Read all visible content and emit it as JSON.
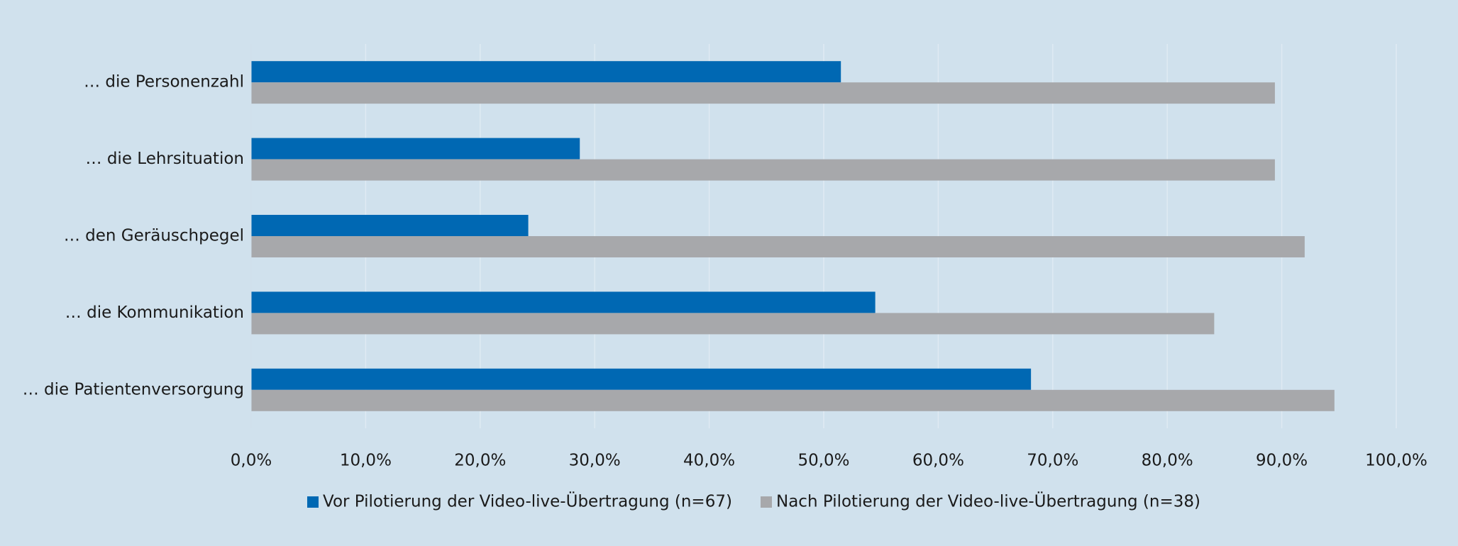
{
  "chart_data": {
    "type": "hbar",
    "categories": [
      "… die Personenzahl",
      "… die Lehrsituation",
      "… den Geräuschpegel",
      "… die Kommunikation",
      "… die Patientenversorgung"
    ],
    "series": [
      {
        "name": "Vor Pilotierung der Video-live-Übertragung (n=67)",
        "color": "#0068b3",
        "values": [
          51.5,
          28.7,
          24.2,
          54.5,
          68.1
        ]
      },
      {
        "name": "Nach Pilotierung der Video-live-Übertragung (n=38)",
        "color": "#a7a8ab",
        "values": [
          89.4,
          89.4,
          92.0,
          84.1,
          94.6
        ]
      }
    ],
    "xlim": [
      0,
      100
    ],
    "xticks": [
      {
        "value": 0,
        "label": "0,0%"
      },
      {
        "value": 10,
        "label": "10,0%"
      },
      {
        "value": 20,
        "label": "20,0%"
      },
      {
        "value": 30,
        "label": "30,0%"
      },
      {
        "value": 40,
        "label": "40,0%"
      },
      {
        "value": 50,
        "label": "50,0%"
      },
      {
        "value": 60,
        "label": "60,0%"
      },
      {
        "value": 70,
        "label": "70,0%"
      },
      {
        "value": 80,
        "label": "80,0%"
      },
      {
        "value": 90,
        "label": "90,0%"
      },
      {
        "value": 100,
        "label": "100,0%"
      }
    ],
    "grid": true,
    "legend": "bottom"
  }
}
